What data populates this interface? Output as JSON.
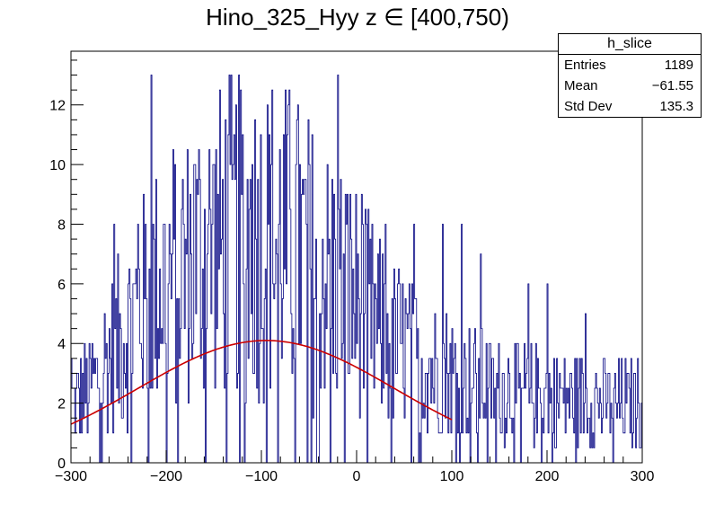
{
  "chart_data": {
    "type": "histogram",
    "title": "Hino_325_Hyy z  ∈ [400,750)",
    "xlabel": "",
    "ylabel": "",
    "xlim": [
      -300,
      300
    ],
    "ylim": [
      0,
      13.8
    ],
    "x_ticks": [
      "−300",
      "−200",
      "−100",
      "0",
      "100",
      "200",
      "300"
    ],
    "y_ticks": [
      "0",
      "2",
      "4",
      "6",
      "8",
      "10",
      "12"
    ],
    "x_tick_values": [
      -300,
      -200,
      -100,
      0,
      100,
      200,
      300
    ],
    "y_tick_values": [
      0,
      2,
      4,
      6,
      8,
      10,
      12
    ],
    "bin_width": 1,
    "line_color": "#000080",
    "fit_color": "#cc0000",
    "envelope": [
      [
        -300,
        1.8
      ],
      [
        -280,
        2.5
      ],
      [
        -260,
        3.5
      ],
      [
        -240,
        4.5
      ],
      [
        -220,
        5.6
      ],
      [
        -200,
        6.2
      ],
      [
        -180,
        6.6
      ],
      [
        -160,
        7.0
      ],
      [
        -140,
        7.4
      ],
      [
        -120,
        7.6
      ],
      [
        -100,
        7.6
      ],
      [
        -80,
        7.5
      ],
      [
        -60,
        7.0
      ],
      [
        -40,
        6.6
      ],
      [
        -20,
        6.0
      ],
      [
        0,
        5.4
      ],
      [
        20,
        4.6
      ],
      [
        40,
        4.0
      ],
      [
        60,
        3.5
      ],
      [
        80,
        3.2
      ],
      [
        100,
        2.9
      ],
      [
        120,
        2.7
      ],
      [
        140,
        2.5
      ],
      [
        160,
        2.4
      ],
      [
        180,
        2.3
      ],
      [
        200,
        2.2
      ],
      [
        220,
        2.2
      ],
      [
        240,
        2.1
      ],
      [
        260,
        2.0
      ],
      [
        280,
        2.0
      ],
      [
        300,
        2.0
      ]
    ],
    "spikes": [
      [
        -216,
        13
      ],
      [
        -20,
        13
      ],
      [
        -170,
        10
      ],
      [
        -150,
        10
      ],
      [
        -130,
        10
      ],
      [
        -110,
        10
      ],
      [
        -90,
        10
      ],
      [
        -60,
        10
      ],
      [
        -255,
        8
      ],
      [
        -230,
        8
      ],
      [
        -10,
        9
      ],
      [
        5,
        9
      ],
      [
        10,
        8
      ],
      [
        30,
        8
      ],
      [
        60,
        8
      ],
      [
        90,
        8
      ],
      [
        110,
        8
      ],
      [
        130,
        7
      ],
      [
        180,
        6
      ],
      [
        200,
        6
      ],
      [
        240,
        5
      ],
      [
        -300,
        3.5
      ],
      [
        300,
        3.5
      ]
    ],
    "fit": {
      "type": "gaussian",
      "constant": 4.1,
      "mean": -95,
      "sigma": 135,
      "x_range": [
        -300,
        100
      ]
    }
  },
  "stats": {
    "name": "h_slice",
    "rows": [
      {
        "label": "Entries",
        "value": "1189"
      },
      {
        "label": "Mean",
        "value": "−61.55"
      },
      {
        "label": "Std Dev",
        "value": "135.3"
      }
    ]
  }
}
